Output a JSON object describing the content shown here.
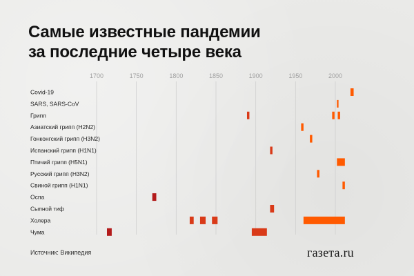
{
  "header": {
    "title_line1": "Самые известные пандемии",
    "title_line2": "за последние четыре века"
  },
  "footer": {
    "source": "Источник: Википедия",
    "brand": "газета.ru"
  },
  "colors": {
    "early": "#b31b1b",
    "middle": "#d93a18",
    "late": "#ff5a00",
    "grid": "#cfcfcf"
  },
  "chart_data": {
    "type": "timeline",
    "title": "Самые известные пандемии за последние четыре века",
    "xlim": [
      1680,
      2030
    ],
    "xticks": [
      1700,
      1750,
      1800,
      1850,
      1900,
      1950,
      2000
    ],
    "xtick_labels": [
      "1700",
      "1750",
      "1800",
      "1850",
      "1900",
      "1950",
      "2000"
    ],
    "grid": true,
    "categories": [
      "Covid-19",
      "SARS, SARS-CoV",
      "Грипп",
      "Азиатский грипп (H2N2)",
      "Гонконгский грипп (H3N2)",
      "Испанский грипп (H1N1)",
      "Птичий грипп (H5N1)",
      "Русский грипп (H3N2)",
      "Свиной грипп (H1N1)",
      "Оспа",
      "Сыпной тиф",
      "Холера",
      "Чума"
    ],
    "series": [
      {
        "category": "Covid-19",
        "periods": [
          [
            2019,
            2023
          ]
        ]
      },
      {
        "category": "SARS, SARS-CoV",
        "periods": [
          [
            2002,
            2004
          ]
        ]
      },
      {
        "category": "Грипп",
        "periods": [
          [
            1889,
            1892
          ],
          [
            1996,
            1999
          ],
          [
            2003,
            2006
          ]
        ]
      },
      {
        "category": "Азиатский грипп (H2N2)",
        "periods": [
          [
            1957,
            1960
          ]
        ]
      },
      {
        "category": "Гонконгский грипп (H3N2)",
        "periods": [
          [
            1968,
            1971
          ]
        ]
      },
      {
        "category": "Испанский грипп (H1N1)",
        "periods": [
          [
            1918,
            1921
          ]
        ]
      },
      {
        "category": "Птичий грипп (H5N1)",
        "periods": [
          [
            2002,
            2012
          ]
        ]
      },
      {
        "category": "Русский грипп (H3N2)",
        "periods": [
          [
            1977,
            1980
          ]
        ]
      },
      {
        "category": "Свиной грипп (H1N1)",
        "periods": [
          [
            2009,
            2012
          ]
        ]
      },
      {
        "category": "Оспа",
        "periods": [
          [
            1770,
            1775
          ]
        ]
      },
      {
        "category": "Сыпной тиф",
        "periods": [
          [
            1918,
            1923
          ]
        ]
      },
      {
        "category": "Холера",
        "periods": [
          [
            1817,
            1822
          ],
          [
            1830,
            1837
          ],
          [
            1845,
            1852
          ],
          [
            1960,
            2012
          ]
        ]
      },
      {
        "category": "Чума",
        "periods": [
          [
            1713,
            1719
          ],
          [
            1895,
            1914
          ]
        ]
      }
    ]
  }
}
